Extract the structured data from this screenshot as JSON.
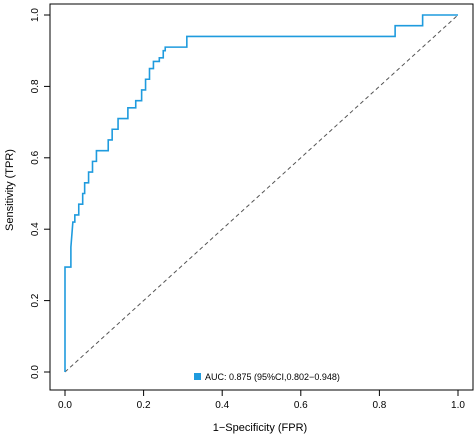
{
  "chart_data": {
    "type": "line",
    "xlabel": "1−Specificity (FPR)",
    "ylabel": "Sensitivity (TPR)",
    "xlim": [
      0,
      1
    ],
    "ylim": [
      0,
      1
    ],
    "x_ticks": [
      "0.0",
      "0.2",
      "0.4",
      "0.6",
      "0.8",
      "1.0"
    ],
    "y_ticks": [
      "0.0",
      "0.2",
      "0.4",
      "0.6",
      "0.8",
      "1.0"
    ],
    "grid": false,
    "legend_position": "bottom-center",
    "legend_label": "AUC: 0.875 (95%CI,0.802−0.948)",
    "series": [
      {
        "color": "#1f9bde",
        "style": "step",
        "x": [
          0,
          0,
          0.015,
          0.015,
          0.02,
          0.025,
          0.025,
          0.035,
          0.035,
          0.045,
          0.045,
          0.05,
          0.05,
          0.06,
          0.06,
          0.07,
          0.07,
          0.08,
          0.08,
          0.11,
          0.11,
          0.12,
          0.12,
          0.135,
          0.135,
          0.16,
          0.16,
          0.18,
          0.18,
          0.195,
          0.195,
          0.205,
          0.205,
          0.215,
          0.215,
          0.225,
          0.225,
          0.24,
          0.24,
          0.25,
          0.25,
          0.255,
          0.255,
          0.28,
          0.28,
          0.31,
          0.31,
          0.335,
          0.335,
          0.36,
          0.36,
          0.84,
          0.84,
          0.91,
          0.91,
          1.0
        ],
        "y": [
          0,
          0.294,
          0.294,
          0.35,
          0.42,
          0.42,
          0.44,
          0.44,
          0.47,
          0.47,
          0.5,
          0.5,
          0.53,
          0.53,
          0.56,
          0.56,
          0.59,
          0.59,
          0.62,
          0.62,
          0.65,
          0.65,
          0.68,
          0.68,
          0.71,
          0.71,
          0.74,
          0.74,
          0.76,
          0.76,
          0.79,
          0.79,
          0.82,
          0.82,
          0.85,
          0.85,
          0.87,
          0.87,
          0.88,
          0.88,
          0.9,
          0.9,
          0.91,
          0.91,
          0.91,
          0.91,
          0.94,
          0.94,
          0.94,
          0.94,
          0.94,
          0.94,
          0.97,
          0.97,
          1.0,
          1.0
        ]
      }
    ],
    "reference_line": {
      "x": [
        0,
        1
      ],
      "y": [
        0,
        1
      ],
      "style": "dashed",
      "color": "#555555"
    }
  }
}
